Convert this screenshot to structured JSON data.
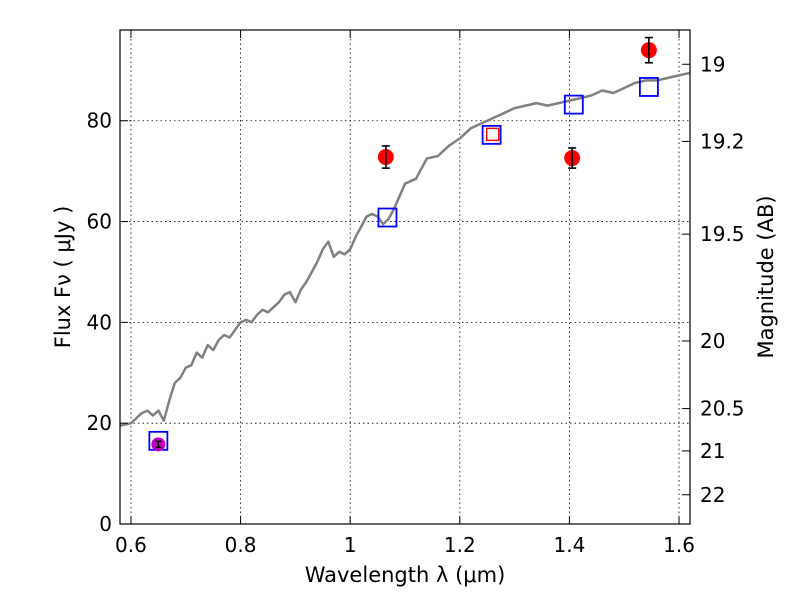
{
  "chart_data": {
    "type": "scatter",
    "title": "",
    "xlabel": "Wavelength  λ (μm)",
    "ylabel": "Flux  Fν  ( μJy )",
    "y2label": "Magnitude (AB)",
    "xlim": [
      0.58,
      1.62
    ],
    "ylim": [
      0,
      98
    ],
    "grid": true,
    "x_ticks": [
      0.6,
      0.8,
      1.0,
      1.2,
      1.4,
      1.6
    ],
    "x_tick_labels": [
      "0.6",
      "0.8",
      "1",
      "1.2",
      "1.4",
      "1.6"
    ],
    "y_ticks": [
      0,
      20,
      40,
      60,
      80
    ],
    "y_tick_labels": [
      "0",
      "20",
      "40",
      "60",
      "80"
    ],
    "y2_ticks": [
      {
        "label": "19",
        "flux": 91.2
      },
      {
        "label": "19.2",
        "flux": 75.9
      },
      {
        "label": "19.5",
        "flux": 57.5
      },
      {
        "label": "20",
        "flux": 36.3
      },
      {
        "label": "20.5",
        "flux": 22.9
      },
      {
        "label": "21",
        "flux": 14.5
      },
      {
        "label": "22",
        "flux": 5.8
      }
    ],
    "colors": {
      "model": "#808080",
      "observed": "#ff0000",
      "synthetic": "#0000ff",
      "synthetic_inner": "#ff0000",
      "magenta_point": "#bf00bf",
      "errorbar": "#000000",
      "grid": "#000000"
    },
    "series": [
      {
        "name": "model spectrum",
        "kind": "line",
        "x": [
          0.58,
          0.6,
          0.61,
          0.62,
          0.63,
          0.64,
          0.65,
          0.66,
          0.67,
          0.68,
          0.69,
          0.7,
          0.71,
          0.72,
          0.73,
          0.74,
          0.75,
          0.76,
          0.77,
          0.78,
          0.79,
          0.8,
          0.81,
          0.82,
          0.83,
          0.84,
          0.85,
          0.86,
          0.87,
          0.88,
          0.89,
          0.9,
          0.91,
          0.92,
          0.93,
          0.94,
          0.95,
          0.96,
          0.97,
          0.98,
          0.99,
          1.0,
          1.01,
          1.02,
          1.03,
          1.04,
          1.05,
          1.06,
          1.07,
          1.08,
          1.1,
          1.12,
          1.14,
          1.16,
          1.18,
          1.2,
          1.22,
          1.24,
          1.26,
          1.28,
          1.3,
          1.32,
          1.34,
          1.36,
          1.38,
          1.4,
          1.42,
          1.44,
          1.46,
          1.48,
          1.5,
          1.52,
          1.54,
          1.56,
          1.58,
          1.6,
          1.62
        ],
        "y": [
          19.5,
          20.0,
          21.0,
          22.0,
          22.5,
          21.5,
          22.5,
          20.5,
          24.5,
          28.0,
          29.0,
          31.0,
          31.5,
          34.0,
          33.0,
          35.5,
          34.5,
          36.5,
          37.5,
          37.0,
          38.5,
          40.0,
          40.5,
          40.0,
          41.5,
          42.5,
          42.0,
          43.0,
          44.0,
          45.5,
          46.0,
          44.0,
          46.5,
          48.0,
          50.0,
          52.0,
          54.5,
          56.0,
          53.0,
          54.0,
          53.5,
          54.5,
          57.0,
          59.0,
          61.0,
          61.5,
          61.0,
          59.5,
          60.5,
          62.5,
          67.5,
          68.5,
          72.5,
          73.0,
          75.0,
          76.5,
          78.5,
          79.5,
          80.5,
          81.5,
          82.5,
          83.0,
          83.5,
          83.0,
          83.5,
          84.0,
          84.5,
          85.0,
          86.0,
          85.5,
          86.5,
          87.5,
          88.0,
          88.0,
          88.5,
          89.0,
          89.5
        ]
      },
      {
        "name": "observed photometry",
        "kind": "points",
        "x": [
          1.065,
          1.26,
          1.405,
          1.545
        ],
        "y": [
          72.8,
          77.3,
          72.6,
          94.0
        ],
        "err": [
          2.2,
          0,
          2.0,
          2.5
        ],
        "style": [
          "filled",
          "open",
          "filled",
          "filled"
        ]
      },
      {
        "name": "synthetic photometry",
        "kind": "points",
        "x": [
          0.65,
          1.068,
          1.258,
          1.408,
          1.545
        ],
        "y": [
          16.5,
          60.8,
          77.2,
          83.2,
          86.7
        ]
      },
      {
        "name": "magenta point",
        "kind": "points",
        "x": [
          0.65
        ],
        "y": [
          15.8
        ],
        "err": [
          0.6
        ]
      }
    ]
  }
}
